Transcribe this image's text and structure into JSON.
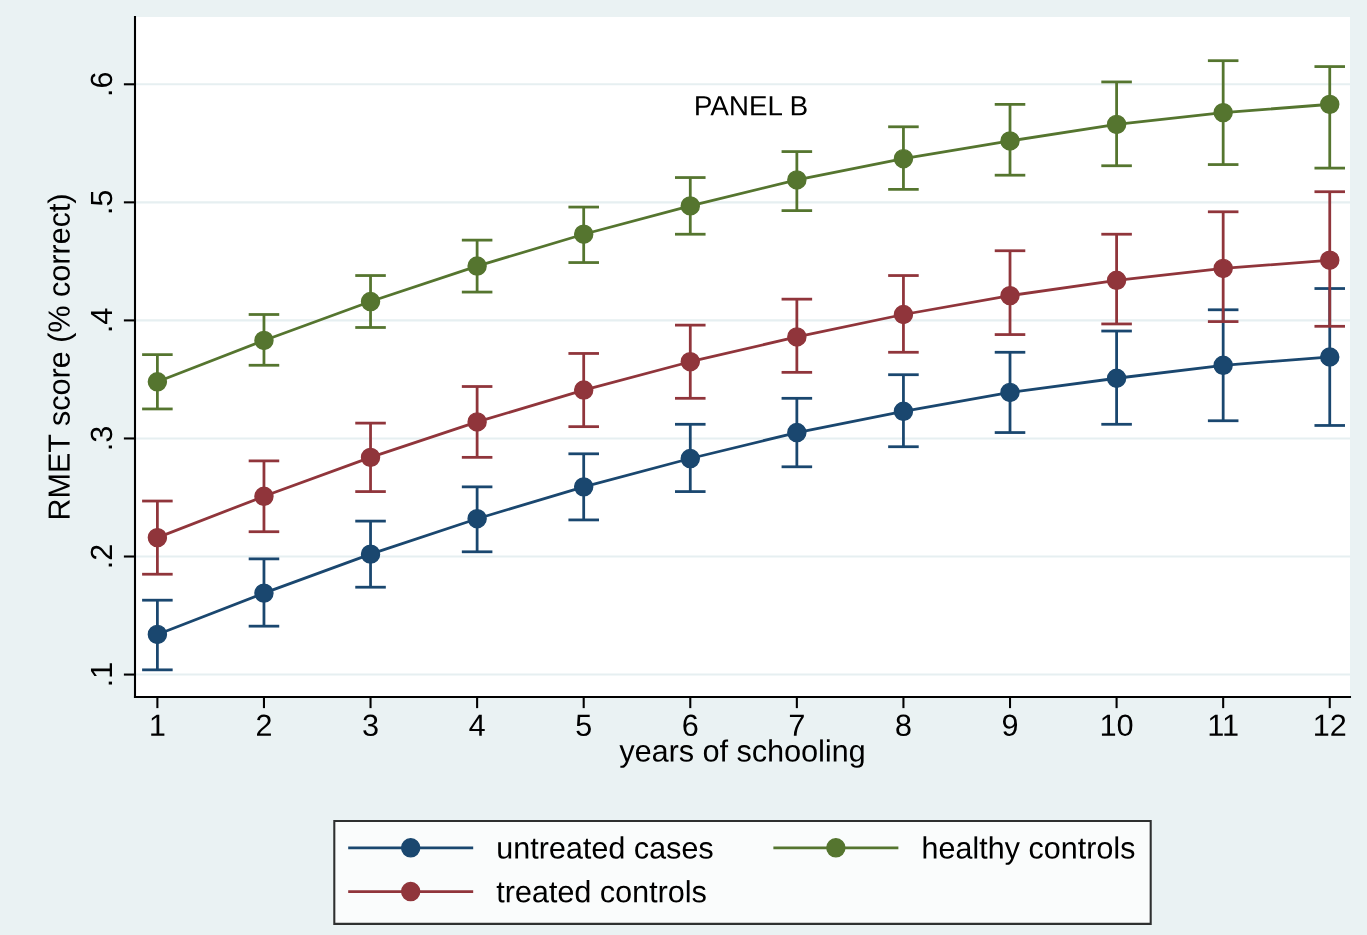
{
  "chart_data": {
    "type": "line",
    "xlabel": "years of schooling",
    "ylabel": "RMET score (% correct)",
    "annotations": [
      "PANEL B"
    ],
    "x": [
      1,
      2,
      3,
      4,
      5,
      6,
      7,
      8,
      9,
      10,
      11,
      12
    ],
    "xlim": [
      0.79,
      12.19
    ],
    "xticks": [
      1,
      2,
      3,
      4,
      5,
      6,
      7,
      8,
      9,
      10,
      11,
      12
    ],
    "ylim": [
      0.081,
      0.657
    ],
    "yticks": [
      {
        "value": 0.1,
        "label": ".1"
      },
      {
        "value": 0.2,
        "label": ".2"
      },
      {
        "value": 0.3,
        "label": ".3"
      },
      {
        "value": 0.4,
        "label": ".4"
      },
      {
        "value": 0.5,
        "label": ".5"
      },
      {
        "value": 0.6,
        "label": ".6"
      }
    ],
    "grid": "y",
    "legend": "bottom",
    "marker": "circle",
    "line_style": "solid",
    "series": [
      {
        "name": "untreated cases",
        "color": "#1a476f",
        "values": [
          0.134,
          0.169,
          0.202,
          0.232,
          0.259,
          0.283,
          0.305,
          0.323,
          0.339,
          0.351,
          0.362,
          0.369
        ],
        "errors": [
          [
            0.104,
            0.163
          ],
          [
            0.141,
            0.198
          ],
          [
            0.174,
            0.23
          ],
          [
            0.204,
            0.259
          ],
          [
            0.231,
            0.287
          ],
          [
            0.255,
            0.312
          ],
          [
            0.276,
            0.334
          ],
          [
            0.293,
            0.354
          ],
          [
            0.305,
            0.373
          ],
          [
            0.312,
            0.391
          ],
          [
            0.315,
            0.409
          ],
          [
            0.311,
            0.427
          ]
        ]
      },
      {
        "name": "treated controls",
        "color": "#90353b",
        "values": [
          0.216,
          0.251,
          0.284,
          0.314,
          0.341,
          0.365,
          0.386,
          0.405,
          0.421,
          0.434,
          0.444,
          0.451
        ],
        "errors": [
          [
            0.185,
            0.247
          ],
          [
            0.221,
            0.281
          ],
          [
            0.255,
            0.313
          ],
          [
            0.284,
            0.344
          ],
          [
            0.31,
            0.372
          ],
          [
            0.334,
            0.396
          ],
          [
            0.356,
            0.418
          ],
          [
            0.373,
            0.438
          ],
          [
            0.388,
            0.459
          ],
          [
            0.397,
            0.473
          ],
          [
            0.399,
            0.492
          ],
          [
            0.395,
            0.509
          ]
        ]
      },
      {
        "name": "healthy controls",
        "color": "#55752f",
        "values": [
          0.348,
          0.383,
          0.416,
          0.446,
          0.473,
          0.497,
          0.519,
          0.537,
          0.552,
          0.566,
          0.576,
          0.583
        ],
        "errors": [
          [
            0.325,
            0.371
          ],
          [
            0.362,
            0.405
          ],
          [
            0.394,
            0.438
          ],
          [
            0.424,
            0.468
          ],
          [
            0.449,
            0.496
          ],
          [
            0.473,
            0.521
          ],
          [
            0.493,
            0.543
          ],
          [
            0.511,
            0.564
          ],
          [
            0.523,
            0.583
          ],
          [
            0.531,
            0.602
          ],
          [
            0.532,
            0.62
          ],
          [
            0.529,
            0.615
          ]
        ]
      }
    ]
  }
}
